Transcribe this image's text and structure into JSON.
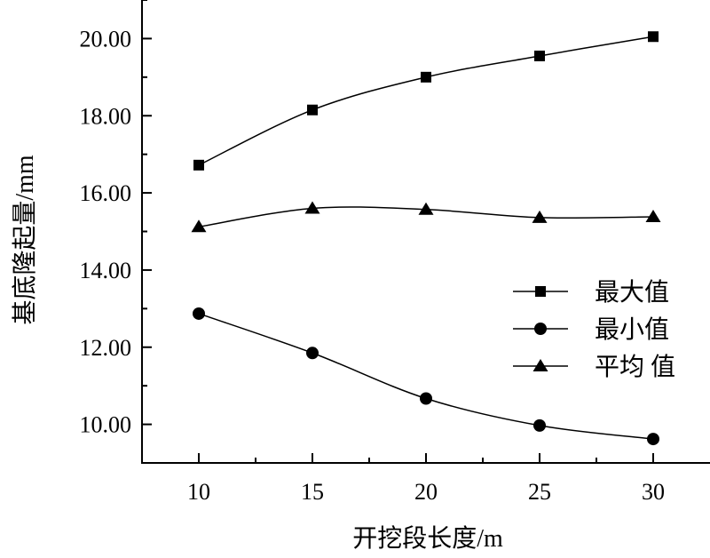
{
  "chart_data": {
    "type": "line",
    "xlabel": "开挖段长度/m",
    "ylabel": "基底隆起量/mm",
    "x": [
      10,
      15,
      20,
      25,
      30
    ],
    "xticks": [
      "10",
      "15",
      "20",
      "25",
      "30"
    ],
    "yticks": [
      "10.00",
      "12.00",
      "14.00",
      "16.00",
      "18.00",
      "20.00"
    ],
    "xlim": [
      7.5,
      32.5
    ],
    "ylim": [
      9.0,
      21.0
    ],
    "grid": false,
    "legend_position": "right",
    "series": [
      {
        "name": "最大值",
        "marker": "square",
        "values": [
          16.72,
          18.15,
          19.0,
          19.55,
          20.05
        ]
      },
      {
        "name": "最小值",
        "marker": "circle",
        "values": [
          12.87,
          11.85,
          10.67,
          9.97,
          9.62
        ]
      },
      {
        "name": "平均 值",
        "marker": "triangle",
        "values": [
          15.12,
          15.6,
          15.57,
          15.36,
          15.38
        ]
      }
    ],
    "line_color": "#000000"
  }
}
